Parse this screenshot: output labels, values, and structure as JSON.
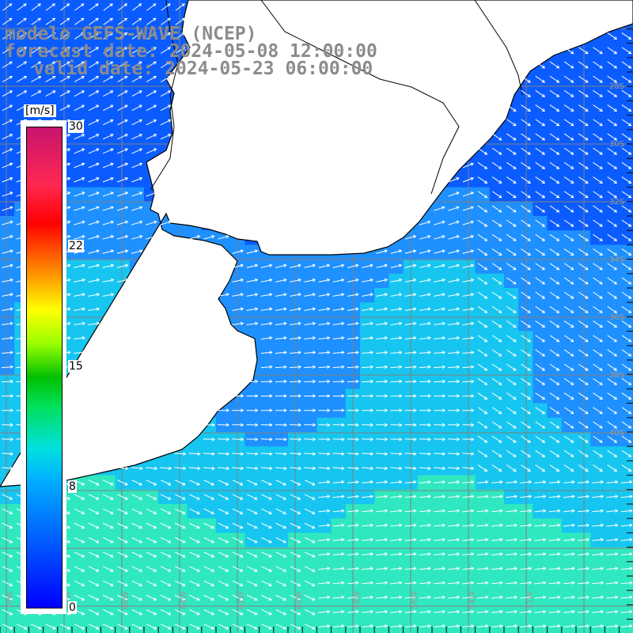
{
  "header": {
    "model": "modelo GEFS-WAVE (NCEP)",
    "forecast": "forecast date: 2024-05-08 12:00:00",
    "valid": "valid date: 2024-05-23 06:00:00"
  },
  "colorbar": {
    "unit": "[m/s]",
    "ticks": [
      "30",
      "22",
      "15",
      "8",
      "0"
    ],
    "range": [
      0,
      30
    ],
    "colors": [
      "#0000ff",
      "#00b0ff",
      "#00e0e0",
      "#00c000",
      "#ffff00",
      "#ff0000",
      "#c8146e"
    ]
  },
  "map": {
    "land_color": "#ffffff",
    "grid": true,
    "lat_labels": [
      "28S",
      "30S",
      "32S",
      "34S",
      "36S",
      "38S",
      "40S"
    ],
    "lon_labels": [
      "70W",
      "68W",
      "66W",
      "64W",
      "62W",
      "60W",
      "58W",
      "56W",
      "54W",
      "52W"
    ],
    "arrow_color": "#ffffff",
    "ocean_colors": {
      "calm": "#0a5cff",
      "mid": "#1e90ff",
      "strong": "#16c6f0",
      "strongest": "#30e8c0"
    }
  }
}
